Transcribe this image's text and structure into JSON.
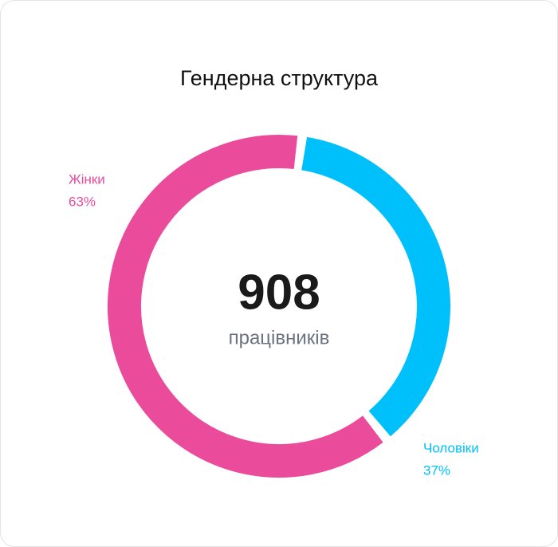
{
  "chart_data": {
    "type": "donut",
    "title": "Гендерна структура",
    "categories": [
      "Жінки",
      "Чоловіки"
    ],
    "values": [
      63,
      37
    ],
    "value_labels": [
      "63%",
      "37%"
    ],
    "colors": [
      "#ea4b9b",
      "#00c0fb"
    ],
    "center_value": 908,
    "center_label": "працівників"
  }
}
